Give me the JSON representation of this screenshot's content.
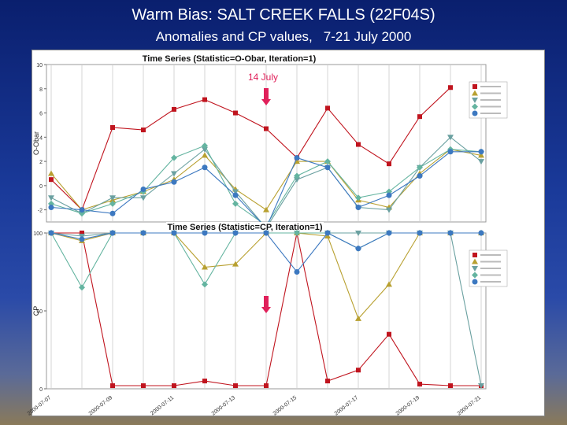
{
  "slide": {
    "title": "Warm Bias: SALT CREEK FALLS (22F04S)",
    "subtitle": "Anomalies and CP values,",
    "date_range": "7-21 July 2000"
  },
  "colors": {
    "series": [
      "#c0141e",
      "#b8a030",
      "#6aa0a0",
      "#64b4a0",
      "#3c78c0"
    ],
    "marker": "#e0205a"
  },
  "chart_data": [
    {
      "type": "line",
      "title": "Time Series (Statistic=O-Obar, Iteration=1)",
      "ylabel": "O-Obar",
      "ylim": [
        -3,
        10
      ],
      "yticks": [
        10,
        8,
        6,
        4,
        2,
        0,
        -2
      ],
      "annotation": "14 July",
      "x": [
        "07-07",
        "07-08",
        "07-09",
        "07-10",
        "07-11",
        "07-12",
        "07-13",
        "07-14",
        "07-15",
        "07-16",
        "07-17",
        "07-18",
        "07-19",
        "07-20",
        "07-21"
      ],
      "legend_placement": "right",
      "series": [
        {
          "name": "",
          "values": [
            0.5,
            -2.0,
            4.8,
            4.6,
            6.3,
            7.1,
            6.0,
            4.7,
            2.3,
            6.4,
            3.4,
            1.8,
            5.7,
            8.1,
            null
          ]
        },
        {
          "name": "",
          "values": [
            1.0,
            -2.0,
            -1.2,
            -0.5,
            0.5,
            2.5,
            -0.3,
            -2.0,
            2.0,
            2.0,
            -1.2,
            -1.8,
            1.0,
            3.0,
            2.5
          ]
        },
        {
          "name": "",
          "values": [
            -1.0,
            -2.3,
            -1.0,
            -1.0,
            1.0,
            3.0,
            -0.5,
            -3.5,
            0.5,
            1.5,
            -1.8,
            -2.0,
            1.5,
            4.0,
            2.0
          ]
        },
        {
          "name": "",
          "values": [
            -1.5,
            -2.3,
            -1.5,
            -0.5,
            2.3,
            3.3,
            -1.5,
            -3.3,
            0.8,
            2.0,
            -1.0,
            -0.5,
            1.5,
            3.0,
            2.8
          ]
        },
        {
          "name": "",
          "values": [
            -1.8,
            -2.0,
            -2.3,
            -0.3,
            0.3,
            1.5,
            -0.8,
            -3.5,
            2.3,
            1.5,
            -1.8,
            -0.8,
            0.8,
            2.8,
            2.8
          ]
        }
      ]
    },
    {
      "type": "line",
      "title": "Time Series (Statistic=CP, Iteration=1)",
      "ylabel": "CP",
      "ylim": [
        0,
        100
      ],
      "yticks": [
        100,
        50,
        0
      ],
      "x": [
        "07-07",
        "07-08",
        "07-09",
        "07-10",
        "07-11",
        "07-12",
        "07-13",
        "07-14",
        "07-15",
        "07-16",
        "07-17",
        "07-18",
        "07-19",
        "07-20",
        "07-21"
      ],
      "xtick_labels": [
        "2000-07-07",
        "2000-07-09",
        "2000-07-11",
        "2000-07-13",
        "2000-07-15",
        "2000-07-17",
        "2000-07-19",
        "2000-07-21"
      ],
      "legend_placement": "right",
      "series": [
        {
          "name": "",
          "values": [
            100,
            100,
            2,
            2,
            2,
            5,
            2,
            2,
            100,
            5,
            12,
            35,
            3,
            2,
            2
          ]
        },
        {
          "name": "",
          "values": [
            100,
            95,
            100,
            100,
            100,
            78,
            80,
            100,
            100,
            98,
            45,
            67,
            100,
            100,
            100
          ]
        },
        {
          "name": "",
          "values": [
            100,
            98,
            100,
            100,
            100,
            100,
            100,
            100,
            100,
            100,
            100,
            100,
            100,
            100,
            2
          ]
        },
        {
          "name": "",
          "values": [
            100,
            65,
            100,
            100,
            100,
            67,
            100,
            100,
            100,
            100,
            90,
            100,
            100,
            100,
            100
          ]
        },
        {
          "name": "",
          "values": [
            100,
            96,
            100,
            100,
            100,
            100,
            100,
            100,
            75,
            100,
            90,
            100,
            100,
            100,
            100
          ]
        }
      ]
    }
  ]
}
